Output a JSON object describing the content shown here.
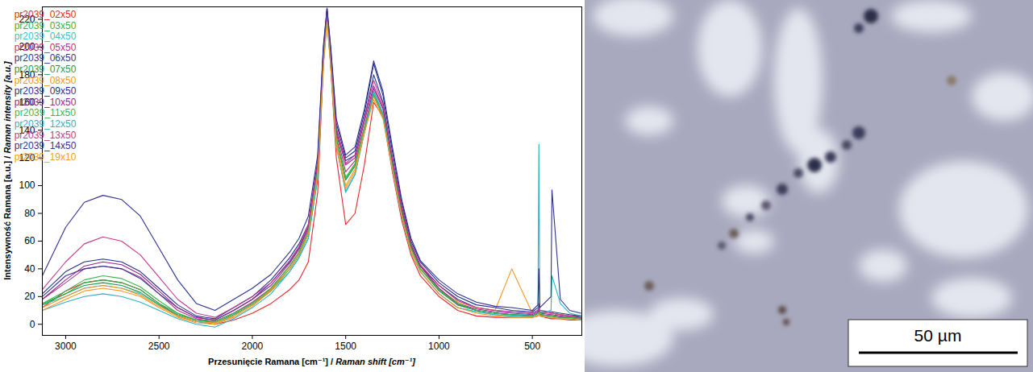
{
  "chart_data": {
    "type": "line",
    "xlabel": "Przesunięcie Ramana [cm⁻¹] / Raman shift [cm⁻¹]",
    "ylabel": "Intensywność Ramana [a.u.] / Raman intensity [a.u.]",
    "xlim": [
      3125,
      235
    ],
    "ylim": [
      -8,
      229
    ],
    "xticks": [
      3000,
      2500,
      2000,
      1500,
      1000,
      500
    ],
    "yticks": [
      0,
      20,
      40,
      60,
      80,
      100,
      120,
      140,
      160,
      180,
      200,
      220
    ],
    "legend": "top-left",
    "x": [
      3125,
      3000,
      2900,
      2800,
      2700,
      2600,
      2500,
      2400,
      2300,
      2200,
      2100,
      2000,
      1900,
      1800,
      1750,
      1700,
      1650,
      1620,
      1600,
      1580,
      1550,
      1500,
      1450,
      1400,
      1350,
      1300,
      1250,
      1200,
      1150,
      1100,
      1000,
      900,
      800,
      700,
      610,
      500,
      470,
      465,
      460,
      400,
      395,
      350,
      300,
      240
    ],
    "series": [
      {
        "name": "pr2039_02x50",
        "color": "#e8262a",
        "values": [
          12,
          24,
          30,
          32,
          30,
          25,
          15,
          6,
          2,
          0,
          3,
          8,
          15,
          25,
          32,
          45,
          95,
          185,
          228,
          185,
          120,
          72,
          80,
          115,
          160,
          150,
          110,
          75,
          50,
          35,
          20,
          10,
          6,
          5,
          5,
          5,
          6,
          15,
          6,
          4,
          4,
          4,
          3,
          3
        ]
      },
      {
        "name": "pr2039_03x50",
        "color": "#2bb34a",
        "values": [
          15,
          22,
          30,
          32,
          30,
          25,
          15,
          8,
          3,
          2,
          8,
          15,
          25,
          40,
          50,
          65,
          110,
          190,
          222,
          190,
          135,
          105,
          115,
          140,
          165,
          150,
          115,
          80,
          55,
          40,
          25,
          15,
          10,
          8,
          7,
          6,
          8,
          8,
          7,
          6,
          6,
          5,
          5,
          4
        ]
      },
      {
        "name": "pr2039_04x50",
        "color": "#3bbfc0",
        "values": [
          14,
          20,
          26,
          28,
          26,
          22,
          14,
          6,
          2,
          0,
          6,
          14,
          24,
          38,
          48,
          62,
          105,
          188,
          220,
          188,
          130,
          95,
          108,
          138,
          168,
          152,
          112,
          78,
          52,
          38,
          22,
          12,
          9,
          7,
          6,
          6,
          7,
          9,
          6,
          5,
          5,
          5,
          4,
          4
        ]
      },
      {
        "name": "pr2039_05x50",
        "color": "#b5338a",
        "values": [
          18,
          30,
          40,
          42,
          40,
          34,
          22,
          10,
          4,
          2,
          8,
          16,
          26,
          42,
          52,
          68,
          112,
          192,
          224,
          192,
          138,
          110,
          118,
          142,
          170,
          155,
          118,
          82,
          56,
          42,
          25,
          14,
          10,
          8,
          7,
          6,
          8,
          10,
          7,
          6,
          6,
          5,
          5,
          4
        ]
      },
      {
        "name": "pr2039_06x50",
        "color": "#2b3990",
        "values": [
          20,
          35,
          40,
          42,
          40,
          33,
          22,
          12,
          5,
          3,
          10,
          18,
          30,
          45,
          55,
          70,
          115,
          195,
          226,
          195,
          140,
          118,
          122,
          148,
          180,
          160,
          120,
          85,
          58,
          42,
          28,
          18,
          12,
          10,
          9,
          8,
          10,
          12,
          9,
          8,
          8,
          7,
          6,
          6
        ]
      },
      {
        "name": "pr2039_07x50",
        "color": "#1a9a50",
        "values": [
          14,
          22,
          28,
          30,
          28,
          23,
          14,
          7,
          3,
          1,
          7,
          14,
          24,
          40,
          50,
          65,
          110,
          190,
          222,
          190,
          134,
          104,
          114,
          140,
          165,
          150,
          114,
          80,
          55,
          40,
          24,
          14,
          10,
          8,
          7,
          6,
          8,
          9,
          7,
          6,
          6,
          5,
          5,
          4
        ]
      },
      {
        "name": "pr2039_08x50",
        "color": "#f7941d",
        "values": [
          12,
          20,
          26,
          28,
          26,
          21,
          13,
          6,
          2,
          1,
          6,
          14,
          25,
          42,
          52,
          67,
          110,
          188,
          220,
          188,
          132,
          100,
          112,
          140,
          165,
          150,
          114,
          80,
          54,
          40,
          25,
          16,
          12,
          10,
          40,
          8,
          10,
          12,
          9,
          8,
          8,
          7,
          6,
          5
        ]
      },
      {
        "name": "pr2039_09x50",
        "color": "#262f8a",
        "values": [
          22,
          38,
          45,
          47,
          45,
          38,
          26,
          14,
          6,
          4,
          12,
          20,
          32,
          48,
          58,
          72,
          118,
          198,
          228,
          198,
          145,
          120,
          125,
          152,
          188,
          165,
          125,
          88,
          60,
          45,
          30,
          20,
          14,
          12,
          10,
          9,
          12,
          14,
          10,
          9,
          9,
          8,
          7,
          6
        ]
      },
      {
        "name": "pr2039_10x50",
        "color": "#92278f",
        "values": [
          18,
          32,
          42,
          45,
          43,
          36,
          24,
          12,
          5,
          3,
          10,
          18,
          28,
          44,
          54,
          70,
          114,
          194,
          225,
          194,
          140,
          115,
          120,
          146,
          172,
          156,
          118,
          83,
          57,
          42,
          26,
          15,
          11,
          9,
          8,
          7,
          9,
          12,
          8,
          7,
          7,
          6,
          5,
          5
        ]
      },
      {
        "name": "pr2039_11x50",
        "color": "#39b54a",
        "values": [
          15,
          24,
          32,
          35,
          33,
          27,
          17,
          8,
          3,
          2,
          8,
          15,
          26,
          42,
          52,
          67,
          112,
          190,
          222,
          190,
          135,
          106,
          116,
          142,
          166,
          151,
          115,
          80,
          55,
          40,
          25,
          15,
          10,
          8,
          7,
          6,
          8,
          9,
          7,
          6,
          6,
          5,
          5,
          4
        ]
      },
      {
        "name": "pr2039_12x50",
        "color": "#29b3c4",
        "values": [
          10,
          16,
          20,
          22,
          20,
          16,
          10,
          4,
          0,
          -2,
          4,
          12,
          22,
          38,
          48,
          62,
          105,
          186,
          218,
          186,
          128,
          96,
          108,
          138,
          168,
          152,
          112,
          78,
          52,
          38,
          22,
          12,
          9,
          7,
          6,
          8,
          10,
          130,
          8,
          10,
          35,
          15,
          8,
          6
        ]
      },
      {
        "name": "pr2039_13x50",
        "color": "#c2398f",
        "values": [
          25,
          45,
          58,
          63,
          60,
          50,
          34,
          18,
          8,
          5,
          12,
          20,
          30,
          46,
          56,
          72,
          116,
          196,
          226,
          196,
          142,
          116,
          122,
          148,
          176,
          158,
          120,
          85,
          58,
          43,
          28,
          17,
          12,
          10,
          9,
          8,
          10,
          12,
          9,
          8,
          8,
          7,
          6,
          5
        ]
      },
      {
        "name": "pr2039_14x50",
        "color": "#2e3192",
        "values": [
          35,
          70,
          88,
          93,
          90,
          78,
          55,
          32,
          15,
          10,
          18,
          26,
          36,
          52,
          62,
          78,
          122,
          200,
          228,
          200,
          148,
          122,
          128,
          155,
          190,
          168,
          128,
          90,
          62,
          46,
          32,
          22,
          16,
          13,
          12,
          10,
          14,
          40,
          12,
          20,
          97,
          18,
          10,
          8
        ]
      },
      {
        "name": "pr2039_19x10",
        "color": "#f39a2b",
        "values": [
          10,
          18,
          24,
          26,
          24,
          20,
          12,
          5,
          1,
          0,
          5,
          13,
          24,
          40,
          50,
          65,
          108,
          186,
          218,
          186,
          128,
          98,
          110,
          138,
          162,
          148,
          112,
          78,
          52,
          38,
          22,
          12,
          8,
          6,
          5,
          5,
          6,
          8,
          6,
          5,
          5,
          4,
          4,
          3
        ]
      }
    ]
  },
  "micrograph": {
    "scale_bar_label": "50 µm"
  }
}
